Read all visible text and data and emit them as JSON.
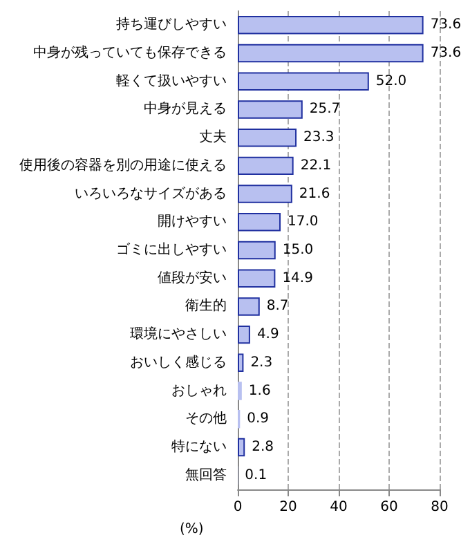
{
  "chart_data": {
    "type": "bar",
    "orientation": "horizontal",
    "categories": [
      "持ち運びしやすい",
      "中身が残っていても保存できる",
      "軽くて扱いやすい",
      "中身が見える",
      "丈夫",
      "使用後の容器を別の用途に使える",
      "いろいろなサイズがある",
      "開けやすい",
      "ゴミに出しやすい",
      "値段が安い",
      "衛生的",
      "環境にやさしい",
      "おいしく感じる",
      "おしゃれ",
      "その他",
      "特にない",
      "無回答"
    ],
    "values": [
      73.6,
      73.6,
      52.0,
      25.7,
      23.3,
      22.1,
      21.6,
      17.0,
      15.0,
      14.9,
      8.7,
      4.9,
      2.3,
      1.6,
      0.9,
      2.8,
      0.1
    ],
    "value_labels": [
      "73.6",
      "73.6",
      "52.0",
      "25.7",
      "23.3",
      "22.1",
      "21.6",
      "17.0",
      "15.0",
      "14.9",
      "8.7",
      "4.9",
      "2.3",
      "1.6",
      "0.9",
      "2.8",
      "0.1"
    ],
    "color": "#b8c0f0",
    "xlabel": "(%)",
    "xlim": [
      0,
      80
    ],
    "xticks": [
      0,
      20,
      40,
      60,
      80
    ],
    "grid": "x"
  }
}
